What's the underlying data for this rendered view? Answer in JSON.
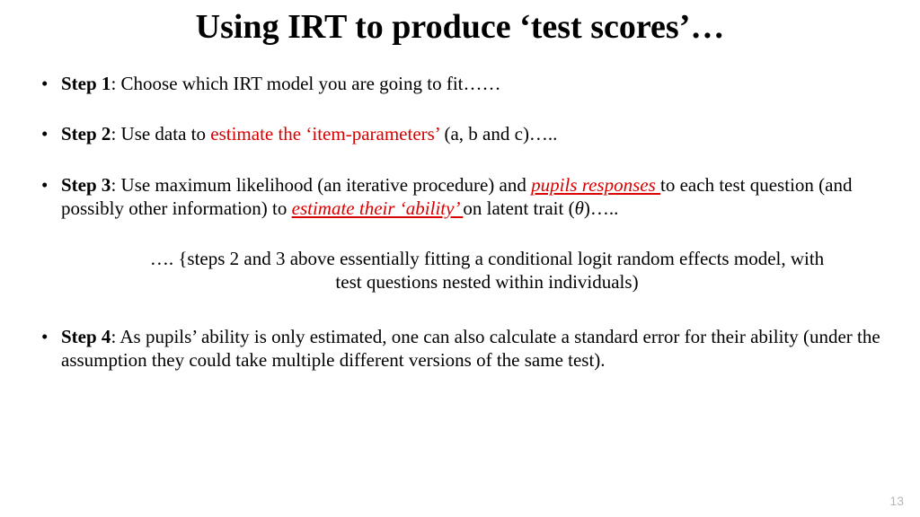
{
  "title": "Using IRT to produce ‘test scores’…",
  "steps": {
    "s1": {
      "label": "Step 1",
      "before": ": Choose which IRT model you are going to fit……"
    },
    "s2": {
      "label": "Step 2",
      "before": ": Use data to ",
      "red1": "estimate the ‘item-parameters’ ",
      "after": "(a, b and c)….."
    },
    "s3": {
      "label": "Step 3",
      "t1": ": Use maximum likelihood (an iterative procedure) and ",
      "r1": "pupils responses ",
      "t2": "to each test question (and possibly other information) to ",
      "r2": "estimate their ‘ability’ ",
      "t3": "on latent trait (",
      "theta": "θ",
      "t4": ")….."
    },
    "s4": {
      "label": "Step 4",
      "text": ": As pupils’ ability is only estimated, one can also calculate a standard error for their ability (under the assumption they could take multiple different versions of the same test)."
    }
  },
  "note": "…. {steps 2 and 3 above essentially fitting a conditional logit random effects model, with test questions nested within individuals)",
  "page_number": "13"
}
